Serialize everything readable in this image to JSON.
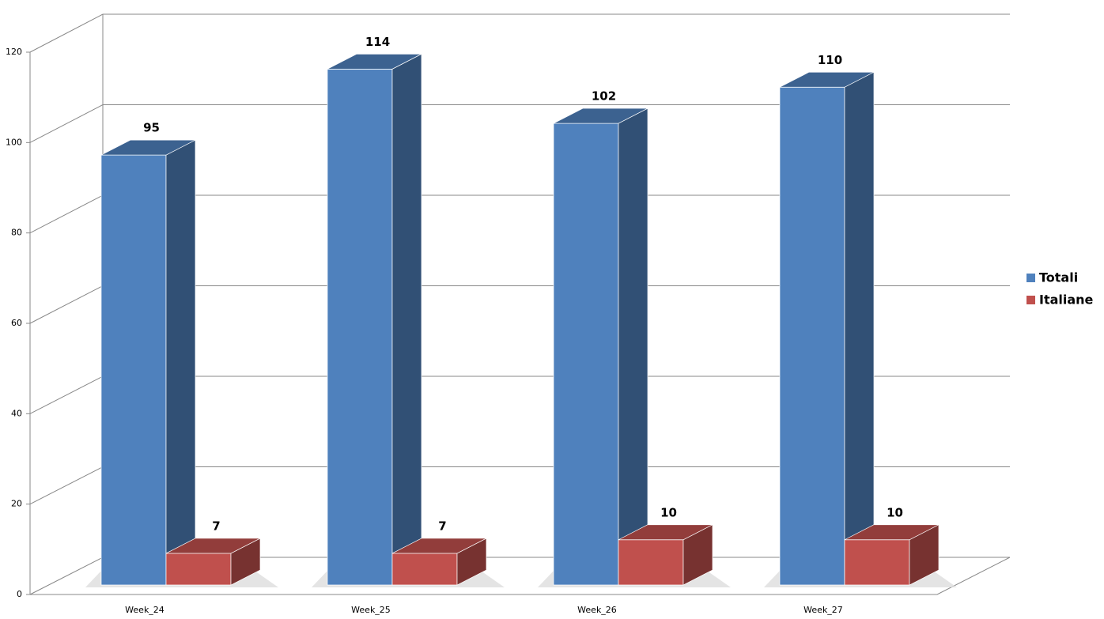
{
  "chart_data": {
    "type": "bar3d",
    "categories": [
      "Week_24",
      "Week_25",
      "Week_26",
      "Week_27"
    ],
    "series": [
      {
        "name": "Totali",
        "color": "#4f81bd",
        "values": [
          95,
          114,
          102,
          110
        ]
      },
      {
        "name": "Italiane",
        "color": "#c0504d",
        "values": [
          7,
          7,
          10,
          10
        ]
      }
    ],
    "ylim": [
      0,
      120
    ],
    "yticks": [
      0,
      20,
      40,
      60,
      80,
      100,
      120
    ],
    "grid": true,
    "legend": "right"
  }
}
